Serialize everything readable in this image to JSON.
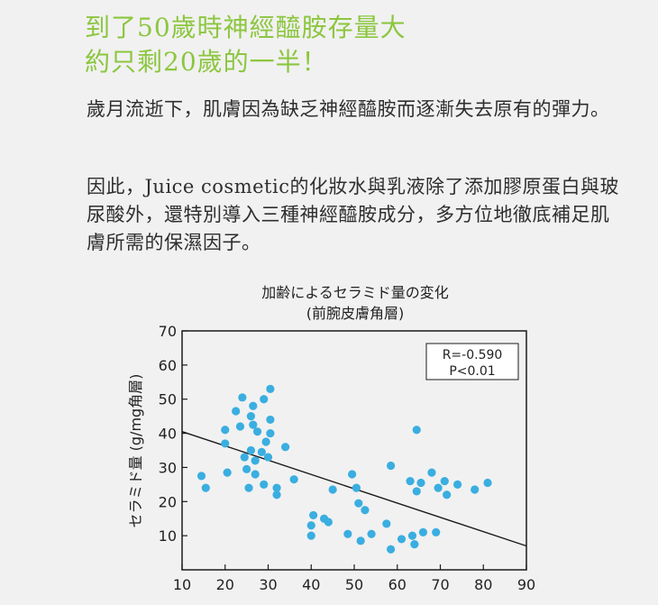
{
  "headline": {
    "line1": "到了50歲時神經醯胺存量大",
    "line2": "約只剩20歲的一半！"
  },
  "paragraphs": [
    "歲月流逝下，肌膚因為缺乏神經醯胺而逐漸失去原有的彈力。",
    "因此，Juice cosmetic的化妝水與乳液除了添加膠原蛋白與玻尿酸外，還特別導入三種神經醯胺成分，多方位地徹底補足肌膚所需的保濕因子。"
  ],
  "colors": {
    "headline": "#8cc63f",
    "point": "#3aaee0",
    "trendline": "#1a1a1a",
    "text": "#2b2b2b"
  },
  "chart_data": {
    "type": "scatter",
    "title": "加齢によるセラミド量の変化",
    "subtitle": "(前腕皮膚角層)",
    "xlabel": "",
    "ylabel": "セラミド量 (g/mg角層)",
    "xlim": [
      10,
      90
    ],
    "ylim": [
      0,
      70
    ],
    "xticks": [
      10,
      20,
      30,
      40,
      50,
      60,
      70,
      80,
      90
    ],
    "yticks": [
      10,
      20,
      30,
      40,
      50,
      60,
      70
    ],
    "grid": false,
    "annotation": {
      "r": "R=-0.590",
      "p": "P<0.01"
    },
    "trendline": {
      "x": [
        10,
        90
      ],
      "y": [
        40.5,
        7
      ]
    },
    "points": [
      {
        "x": 14.5,
        "y": 27.5
      },
      {
        "x": 15.5,
        "y": 24
      },
      {
        "x": 20,
        "y": 41
      },
      {
        "x": 20,
        "y": 37
      },
      {
        "x": 20.5,
        "y": 28.5
      },
      {
        "x": 22.5,
        "y": 46.5
      },
      {
        "x": 23.5,
        "y": 42
      },
      {
        "x": 24,
        "y": 50.5
      },
      {
        "x": 24.5,
        "y": 33
      },
      {
        "x": 25,
        "y": 29.5
      },
      {
        "x": 25.5,
        "y": 24
      },
      {
        "x": 26,
        "y": 45
      },
      {
        "x": 26,
        "y": 35
      },
      {
        "x": 26.5,
        "y": 48
      },
      {
        "x": 26.5,
        "y": 42.5
      },
      {
        "x": 27,
        "y": 32
      },
      {
        "x": 27,
        "y": 28
      },
      {
        "x": 27.5,
        "y": 40.5
      },
      {
        "x": 28.5,
        "y": 34.5
      },
      {
        "x": 29,
        "y": 50
      },
      {
        "x": 29,
        "y": 25
      },
      {
        "x": 29.5,
        "y": 37.5
      },
      {
        "x": 30,
        "y": 33
      },
      {
        "x": 30.5,
        "y": 53
      },
      {
        "x": 30.5,
        "y": 44
      },
      {
        "x": 30.5,
        "y": 40
      },
      {
        "x": 32,
        "y": 24
      },
      {
        "x": 32,
        "y": 22
      },
      {
        "x": 34,
        "y": 36
      },
      {
        "x": 36,
        "y": 26.5
      },
      {
        "x": 40,
        "y": 13
      },
      {
        "x": 40,
        "y": 10
      },
      {
        "x": 40.5,
        "y": 16
      },
      {
        "x": 43,
        "y": 15
      },
      {
        "x": 44,
        "y": 14
      },
      {
        "x": 45,
        "y": 23.5
      },
      {
        "x": 48.5,
        "y": 10.5
      },
      {
        "x": 49.5,
        "y": 28
      },
      {
        "x": 50.5,
        "y": 24
      },
      {
        "x": 51,
        "y": 19.5
      },
      {
        "x": 51.5,
        "y": 8.5
      },
      {
        "x": 52.5,
        "y": 17.5
      },
      {
        "x": 54,
        "y": 10.5
      },
      {
        "x": 57.5,
        "y": 13.5
      },
      {
        "x": 58.5,
        "y": 30.5
      },
      {
        "x": 58.5,
        "y": 6
      },
      {
        "x": 61,
        "y": 9
      },
      {
        "x": 63,
        "y": 26
      },
      {
        "x": 63.5,
        "y": 10
      },
      {
        "x": 64,
        "y": 7.5
      },
      {
        "x": 64.5,
        "y": 23
      },
      {
        "x": 64.5,
        "y": 41
      },
      {
        "x": 65.5,
        "y": 25.5
      },
      {
        "x": 66,
        "y": 11
      },
      {
        "x": 68,
        "y": 28.5
      },
      {
        "x": 69,
        "y": 11
      },
      {
        "x": 69.5,
        "y": 24
      },
      {
        "x": 71,
        "y": 26
      },
      {
        "x": 71.5,
        "y": 22
      },
      {
        "x": 74,
        "y": 25
      },
      {
        "x": 78,
        "y": 23.5
      },
      {
        "x": 81,
        "y": 25.5
      }
    ]
  }
}
